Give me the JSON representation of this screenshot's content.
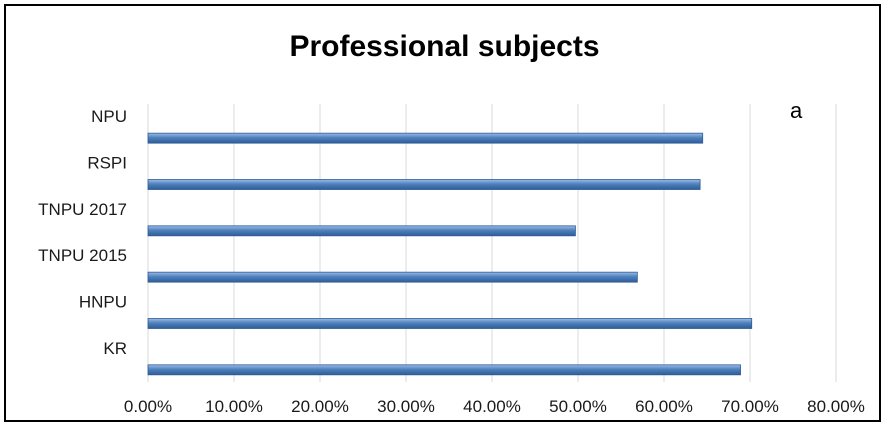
{
  "chart_data": {
    "type": "bar",
    "orientation": "horizontal",
    "title": "Professional subjects",
    "annotation": "a",
    "categories": [
      "NPU",
      "RSPI",
      "TNPU 2017",
      "TNPU 2015",
      "HNPU",
      "KR"
    ],
    "values": [
      0.645,
      0.642,
      0.497,
      0.569,
      0.702,
      0.689
    ],
    "xlim": [
      0,
      0.8
    ],
    "xticks": [
      "0.00%",
      "10.00%",
      "20.00%",
      "30.00%",
      "40.00%",
      "50.00%",
      "60.00%",
      "70.00%",
      "80.00%"
    ],
    "xlabel": "",
    "ylabel": "",
    "grid": true,
    "colors": {
      "bar": "#4f81bd",
      "bar_dark": "#2e5c96",
      "bar_light": "#9dbde6",
      "grid": "#d9d9d9"
    }
  }
}
